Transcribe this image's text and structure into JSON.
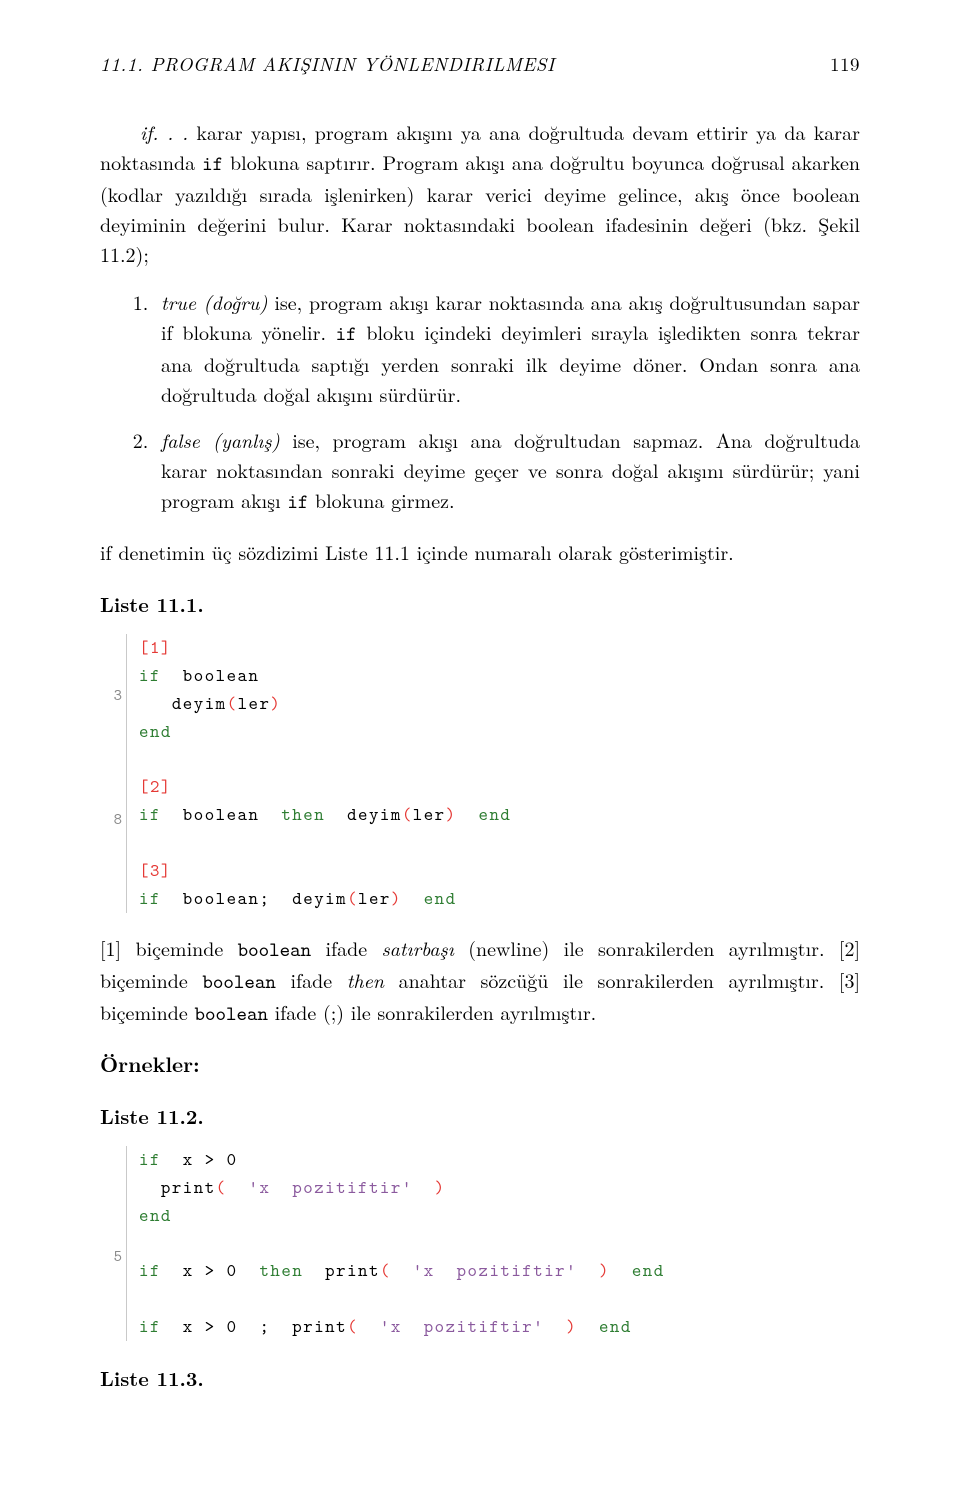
{
  "header": {
    "title": "11.1. PROGRAM AKIŞININ YÖNLENDIRILMESI",
    "page_number": "119"
  },
  "p1_a": "if. . .",
  "p1_b": " karar yapısı, program akışını ya ana doğrultuda devam ettirir ya da karar noktasında ",
  "p1_c": "if",
  "p1_d": " blokuna saptırır. Program akışı ana doğrultu boyunca doğrusal akarken (kodlar yazıldığı sırada işlenirken) karar verici deyime gelince, akış önce boolean deyiminin değerini bulur. Karar noktasındaki boolean ifadesinin değeri (bkz. Şekil 11.2);",
  "li1_a": "true (doğru)",
  "li1_b": " ise, program akışı karar noktasında ana akış doğrultusundan sapar if blokuna yönelir. ",
  "li1_c": "if",
  "li1_d": " bloku içindeki deyimleri sırayla işledikten sonra tekrar ana doğrultuda saptığı yerden sonraki ilk deyime döner. Ondan sonra ana doğrultuda doğal akışını sürdürür.",
  "li2_a": "false (yanlış)",
  "li2_b": " ise, program akışı ana doğrultudan sapmaz. Ana doğrultuda karar noktasından sonraki deyime geçer ve sonra doğal akışını sürdürür; yani program akışı ",
  "li2_c": "if",
  "li2_d": " blokuna girmez.",
  "p2": "if denetimin üç sözdizimi Liste 11.1 içinde numaralı olarak gösterimiştir.",
  "liste1_heading": "Liste 11.1.",
  "code1": {
    "gutter": "\n\n3\n\n\n\n\n8\n\n",
    "l1_a": "[1]",
    "l2_a": "if",
    "l2_b": "  boolean",
    "l3_a": "   deyim",
    "l3_b": "(",
    "l3_c": "ler",
    "l3_d": ")",
    "l4_a": "end",
    "l5_a": "",
    "l6_a": "[2]",
    "l7_a": "if",
    "l7_b": "  boolean  ",
    "l7_c": "then",
    "l7_d": "  deyim",
    "l7_e": "(",
    "l7_f": "ler",
    "l7_g": ")",
    "l7_h": "  ",
    "l7_i": "end",
    "l8_a": "",
    "l9_a": "[3]",
    "l10_a": "if",
    "l10_b": "  boolean;  deyim",
    "l10_c": "(",
    "l10_d": "ler",
    "l10_e": ")",
    "l10_f": "  ",
    "l10_g": "end"
  },
  "p3_a": "[1] biçeminde ",
  "p3_b": "boolean",
  "p3_c": " ifade ",
  "p3_d": "satırbaşı",
  "p3_e": " (newline) ile sonrakilerden ayrılmıştır. [2] biçeminde ",
  "p3_f": "boolean",
  "p3_g": " ifade ",
  "p3_h": "then",
  "p3_i": " anahtar sözcüğü ile sonrakilerden ayrılmıştır. [3] biçeminde ",
  "p3_j": "boolean",
  "p3_k": " ifade (;) ile sonrakilerden ayrılmıştır.",
  "ornekler_heading": "Örnekler:",
  "liste2_heading": "Liste 11.2.",
  "code2": {
    "gutter": "\n\n\n\n5\n\n",
    "l1_a": "if",
    "l1_b": "  x > 0",
    "l2_a": "  print",
    "l2_b": "(",
    "l2_c": "  ",
    "l2_d": "'x  pozitiftir'",
    "l2_e": "  ",
    "l2_f": ")",
    "l3_a": "end",
    "l4_a": "",
    "l5_a": "if",
    "l5_b": "  x > 0  ",
    "l5_c": "then",
    "l5_d": "  print",
    "l5_e": "(",
    "l5_f": "  ",
    "l5_g": "'x  pozitiftir'",
    "l5_h": "  ",
    "l5_i": ")",
    "l5_j": "  ",
    "l5_k": "end",
    "l6_a": "",
    "l7_a": "if",
    "l7_b": "  x > 0  ;  print",
    "l7_c": "(",
    "l7_d": "  ",
    "l7_e": "'x  pozitiftir'",
    "l7_f": "  ",
    "l7_g": ")",
    "l7_h": "  ",
    "l7_i": "end"
  },
  "liste3_heading": "Liste 11.3."
}
